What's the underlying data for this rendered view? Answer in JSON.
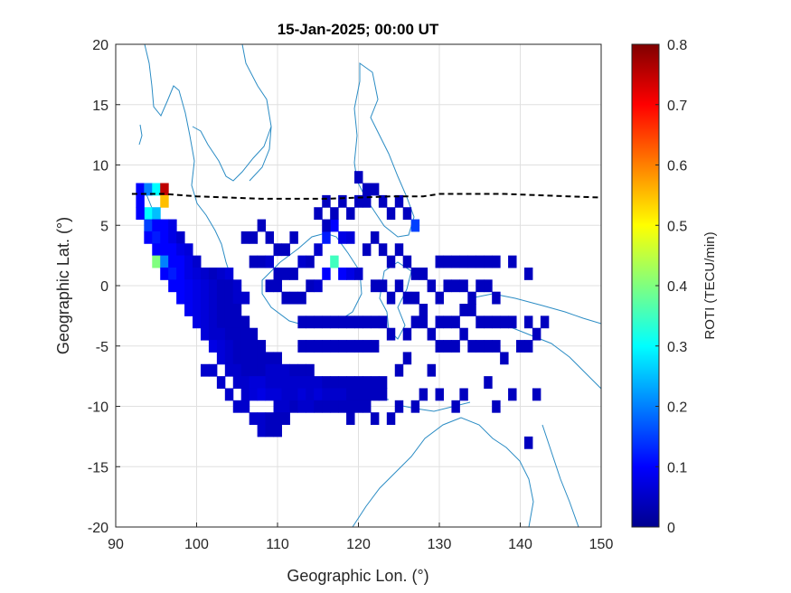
{
  "chart_data": {
    "type": "heatmap",
    "title": "15-Jan-2025; 00:00 UT",
    "xlabel": "Geographic Lon. (°)",
    "ylabel": "Geographic Lat. (°)",
    "xlim": [
      90,
      150
    ],
    "ylim": [
      -20,
      20
    ],
    "xticks": [
      "90",
      "100",
      "110",
      "120",
      "130",
      "140",
      "150"
    ],
    "yticks": [
      "20",
      "15",
      "10",
      "5",
      "0",
      "-5",
      "-10",
      "-15",
      "-20"
    ],
    "grid": true,
    "colorbar": {
      "label": "ROTI (TECU/min)",
      "range": [
        0,
        0.8
      ],
      "ticks": [
        "0",
        "0.1",
        "0.2",
        "0.3",
        "0.4",
        "0.5",
        "0.6",
        "0.7",
        "0.8"
      ],
      "colormap": "jet"
    },
    "magnetic_equator_line": {
      "style": "dashed",
      "color": "#000000",
      "x": [
        92,
        96,
        100,
        104,
        108,
        112,
        116,
        120,
        124,
        128,
        130,
        134,
        138,
        142,
        146,
        150
      ],
      "y": [
        7.6,
        7.6,
        7.4,
        7.3,
        7.2,
        7.2,
        7.2,
        7.3,
        7.4,
        7.4,
        7.6,
        7.6,
        7.6,
        7.5,
        7.4,
        7.3
      ]
    },
    "coastline_color": "#2b8cc4",
    "cells": [
      [
        93,
        8,
        0.1
      ],
      [
        94,
        8,
        0.2
      ],
      [
        95,
        8,
        0.3
      ],
      [
        96,
        8,
        0.75
      ],
      [
        96,
        7,
        0.55
      ],
      [
        93,
        7,
        0.1
      ],
      [
        94,
        6,
        0.3
      ],
      [
        95,
        6,
        0.25
      ],
      [
        93,
        6,
        0.1
      ],
      [
        94,
        5,
        0.15
      ],
      [
        95,
        5,
        0.1
      ],
      [
        96,
        5,
        0.1
      ],
      [
        97,
        5,
        0.08
      ],
      [
        94,
        4,
        0.1
      ],
      [
        95,
        4,
        0.12
      ],
      [
        96,
        4,
        0.1
      ],
      [
        97,
        4,
        0.08
      ],
      [
        98,
        4,
        0.06
      ],
      [
        95,
        3,
        0.1
      ],
      [
        96,
        3,
        0.1
      ],
      [
        97,
        3,
        0.1
      ],
      [
        98,
        3,
        0.08
      ],
      [
        99,
        3,
        0.07
      ],
      [
        95,
        2,
        0.4
      ],
      [
        96,
        2,
        0.2
      ],
      [
        97,
        2,
        0.1
      ],
      [
        98,
        2,
        0.1
      ],
      [
        99,
        2,
        0.08
      ],
      [
        100,
        2,
        0.06
      ],
      [
        96,
        1,
        0.1
      ],
      [
        97,
        1,
        0.12
      ],
      [
        98,
        1,
        0.1
      ],
      [
        99,
        1,
        0.08
      ],
      [
        100,
        1,
        0.07
      ],
      [
        101,
        1,
        0.06
      ],
      [
        102,
        1,
        0.05
      ],
      [
        103,
        1,
        0.06
      ],
      [
        104,
        1,
        0.07
      ],
      [
        97,
        0,
        0.1
      ],
      [
        98,
        0,
        0.1
      ],
      [
        99,
        0,
        0.09
      ],
      [
        100,
        0,
        0.08
      ],
      [
        101,
        0,
        0.07
      ],
      [
        102,
        0,
        0.06
      ],
      [
        103,
        0,
        0.05
      ],
      [
        104,
        0,
        0.05
      ],
      [
        105,
        0,
        0.06
      ],
      [
        98,
        -1,
        0.1
      ],
      [
        99,
        -1,
        0.09
      ],
      [
        100,
        -1,
        0.08
      ],
      [
        101,
        -1,
        0.07
      ],
      [
        102,
        -1,
        0.06
      ],
      [
        103,
        -1,
        0.05
      ],
      [
        104,
        -1,
        0.05
      ],
      [
        105,
        -1,
        0.06
      ],
      [
        106,
        -1,
        0.06
      ],
      [
        99,
        -2,
        0.09
      ],
      [
        100,
        -2,
        0.08
      ],
      [
        101,
        -2,
        0.07
      ],
      [
        102,
        -2,
        0.06
      ],
      [
        103,
        -2,
        0.05
      ],
      [
        104,
        -2,
        0.05
      ],
      [
        105,
        -2,
        0.05
      ],
      [
        100,
        -3,
        0.08
      ],
      [
        101,
        -3,
        0.07
      ],
      [
        102,
        -3,
        0.06
      ],
      [
        103,
        -3,
        0.05
      ],
      [
        104,
        -3,
        0.05
      ],
      [
        105,
        -3,
        0.05
      ],
      [
        106,
        -3,
        0.05
      ],
      [
        101,
        -4,
        0.07
      ],
      [
        102,
        -4,
        0.06
      ],
      [
        103,
        -4,
        0.06
      ],
      [
        104,
        -4,
        0.05
      ],
      [
        105,
        -4,
        0.05
      ],
      [
        106,
        -4,
        0.05
      ],
      [
        107,
        -4,
        0.05
      ],
      [
        102,
        -5,
        0.08
      ],
      [
        103,
        -5,
        0.07
      ],
      [
        104,
        -5,
        0.06
      ],
      [
        105,
        -5,
        0.05
      ],
      [
        106,
        -5,
        0.05
      ],
      [
        107,
        -5,
        0.05
      ],
      [
        108,
        -5,
        0.05
      ],
      [
        103,
        -6,
        0.07
      ],
      [
        104,
        -6,
        0.06
      ],
      [
        105,
        -6,
        0.05
      ],
      [
        106,
        -6,
        0.05
      ],
      [
        107,
        -6,
        0.05
      ],
      [
        108,
        -6,
        0.05
      ],
      [
        109,
        -6,
        0.05
      ],
      [
        110,
        -6,
        0.05
      ],
      [
        104,
        -7,
        0.06
      ],
      [
        105,
        -7,
        0.06
      ],
      [
        106,
        -7,
        0.05
      ],
      [
        107,
        -7,
        0.05
      ],
      [
        108,
        -7,
        0.05
      ],
      [
        109,
        -7,
        0.06
      ],
      [
        110,
        -7,
        0.06
      ],
      [
        111,
        -7,
        0.06
      ],
      [
        112,
        -7,
        0.05
      ],
      [
        113,
        -7,
        0.05
      ],
      [
        114,
        -7,
        0.05
      ],
      [
        105,
        -8,
        0.06
      ],
      [
        106,
        -8,
        0.06
      ],
      [
        107,
        -8,
        0.07
      ],
      [
        108,
        -8,
        0.07
      ],
      [
        109,
        -8,
        0.06
      ],
      [
        110,
        -8,
        0.06
      ],
      [
        111,
        -8,
        0.06
      ],
      [
        112,
        -8,
        0.06
      ],
      [
        113,
        -8,
        0.06
      ],
      [
        114,
        -8,
        0.06
      ],
      [
        115,
        -8,
        0.06
      ],
      [
        116,
        -8,
        0.05
      ],
      [
        117,
        -8,
        0.05
      ],
      [
        118,
        -8,
        0.05
      ],
      [
        119,
        -8,
        0.05
      ],
      [
        120,
        -8,
        0.05
      ],
      [
        121,
        -8,
        0.05
      ],
      [
        122,
        -8,
        0.05
      ],
      [
        123,
        -8,
        0.05
      ],
      [
        106,
        -9,
        0.06
      ],
      [
        107,
        -9,
        0.07
      ],
      [
        108,
        -9,
        0.08
      ],
      [
        109,
        -9,
        0.07
      ],
      [
        110,
        -9,
        0.07
      ],
      [
        111,
        -9,
        0.06
      ],
      [
        112,
        -9,
        0.06
      ],
      [
        113,
        -9,
        0.07
      ],
      [
        114,
        -9,
        0.06
      ],
      [
        115,
        -9,
        0.07
      ],
      [
        116,
        -9,
        0.06
      ],
      [
        117,
        -9,
        0.06
      ],
      [
        118,
        -9,
        0.06
      ],
      [
        119,
        -9,
        0.05
      ],
      [
        120,
        -9,
        0.05
      ],
      [
        121,
        -9,
        0.05
      ],
      [
        122,
        -9,
        0.05
      ],
      [
        123,
        -9,
        0.05
      ],
      [
        110,
        -10,
        0.06
      ],
      [
        111,
        -10,
        0.06
      ],
      [
        112,
        -10,
        0.05
      ],
      [
        113,
        -10,
        0.06
      ],
      [
        114,
        -10,
        0.06
      ],
      [
        115,
        -10,
        0.05
      ],
      [
        116,
        -10,
        0.05
      ],
      [
        117,
        -10,
        0.05
      ],
      [
        118,
        -10,
        0.05
      ],
      [
        119,
        -10,
        0.05
      ],
      [
        120,
        -10,
        0.05
      ],
      [
        121,
        -10,
        0.05
      ],
      [
        107,
        -11,
        0.06
      ],
      [
        108,
        -11,
        0.06
      ],
      [
        109,
        -11,
        0.05
      ],
      [
        110,
        -11,
        0.05
      ],
      [
        111,
        -11,
        0.05
      ],
      [
        108,
        -12,
        0.06
      ],
      [
        109,
        -12,
        0.05
      ],
      [
        110,
        -12,
        0.05
      ],
      [
        101,
        -7,
        0.06
      ],
      [
        102,
        -7,
        0.06
      ],
      [
        103,
        -8,
        0.06
      ],
      [
        104,
        -9,
        0.06
      ],
      [
        105,
        -10,
        0.06
      ],
      [
        106,
        -10,
        0.06
      ],
      [
        106,
        4,
        0.05
      ],
      [
        107,
        4,
        0.05
      ],
      [
        108,
        5,
        0.05
      ],
      [
        109,
        4,
        0.05
      ],
      [
        110,
        3,
        0.05
      ],
      [
        111,
        3,
        0.05
      ],
      [
        112,
        4,
        0.05
      ],
      [
        107,
        2,
        0.05
      ],
      [
        108,
        2,
        0.05
      ],
      [
        109,
        2,
        0.06
      ],
      [
        110,
        1,
        0.05
      ],
      [
        111,
        1,
        0.05
      ],
      [
        112,
        1,
        0.05
      ],
      [
        113,
        2,
        0.06
      ],
      [
        114,
        2,
        0.05
      ],
      [
        115,
        3,
        0.06
      ],
      [
        116,
        4,
        0.12
      ],
      [
        117,
        5,
        0.1
      ],
      [
        118,
        4,
        0.08
      ],
      [
        119,
        4,
        0.07
      ],
      [
        109,
        0,
        0.05
      ],
      [
        110,
        0,
        0.05
      ],
      [
        111,
        -1,
        0.05
      ],
      [
        112,
        -1,
        0.05
      ],
      [
        113,
        -1,
        0.05
      ],
      [
        114,
        0,
        0.05
      ],
      [
        115,
        0,
        0.06
      ],
      [
        116,
        1,
        0.1
      ],
      [
        117,
        2,
        0.35
      ],
      [
        118,
        1,
        0.1
      ],
      [
        119,
        1,
        0.08
      ],
      [
        120,
        1,
        0.06
      ],
      [
        113,
        -3,
        0.05
      ],
      [
        114,
        -3,
        0.05
      ],
      [
        115,
        -3,
        0.05
      ],
      [
        116,
        -3,
        0.05
      ],
      [
        117,
        -3,
        0.05
      ],
      [
        118,
        -3,
        0.05
      ],
      [
        119,
        -3,
        0.05
      ],
      [
        120,
        -3,
        0.05
      ],
      [
        121,
        -3,
        0.05
      ],
      [
        122,
        -3,
        0.05
      ],
      [
        113,
        -5,
        0.05
      ],
      [
        114,
        -5,
        0.05
      ],
      [
        115,
        -5,
        0.05
      ],
      [
        116,
        -5,
        0.05
      ],
      [
        117,
        -5,
        0.05
      ],
      [
        118,
        -5,
        0.05
      ],
      [
        119,
        -5,
        0.05
      ],
      [
        120,
        -5,
        0.05
      ],
      [
        121,
        -5,
        0.05
      ],
      [
        122,
        -5,
        0.05
      ],
      [
        115,
        6,
        0.05
      ],
      [
        116,
        7,
        0.05
      ],
      [
        117,
        6,
        0.05
      ],
      [
        118,
        7,
        0.05
      ],
      [
        119,
        6,
        0.05
      ],
      [
        120,
        7,
        0.05
      ],
      [
        121,
        7,
        0.05
      ],
      [
        122,
        8,
        0.05
      ],
      [
        123,
        7,
        0.05
      ],
      [
        124,
        6,
        0.05
      ],
      [
        125,
        7,
        0.05
      ],
      [
        126,
        6,
        0.05
      ],
      [
        127,
        5,
        0.15
      ],
      [
        120,
        9,
        0.05
      ],
      [
        121,
        8,
        0.05
      ],
      [
        116,
        5,
        0.05
      ],
      [
        121,
        3,
        0.05
      ],
      [
        122,
        4,
        0.05
      ],
      [
        123,
        3,
        0.05
      ],
      [
        124,
        2,
        0.05
      ],
      [
        125,
        3,
        0.05
      ],
      [
        126,
        2,
        0.05
      ],
      [
        127,
        1,
        0.05
      ],
      [
        128,
        1,
        0.05
      ],
      [
        129,
        0,
        0.05
      ],
      [
        122,
        0,
        0.05
      ],
      [
        123,
        0,
        0.05
      ],
      [
        124,
        -1,
        0.05
      ],
      [
        125,
        0,
        0.05
      ],
      [
        126,
        -1,
        0.05
      ],
      [
        127,
        -1,
        0.05
      ],
      [
        128,
        -2,
        0.05
      ],
      [
        123,
        -3,
        0.05
      ],
      [
        124,
        -4,
        0.05
      ],
      [
        126,
        -4,
        0.05
      ],
      [
        127,
        -3,
        0.05
      ],
      [
        128,
        -3,
        0.05
      ],
      [
        129,
        -4,
        0.05
      ],
      [
        130,
        -3,
        0.05
      ],
      [
        131,
        -3,
        0.05
      ],
      [
        132,
        -3,
        0.05
      ],
      [
        133,
        -2,
        0.05
      ],
      [
        134,
        -2,
        0.05
      ],
      [
        135,
        -3,
        0.05
      ],
      [
        136,
        -3,
        0.05
      ],
      [
        137,
        -3,
        0.05
      ],
      [
        138,
        -3,
        0.05
      ],
      [
        139,
        -3,
        0.05
      ],
      [
        130,
        -1,
        0.05
      ],
      [
        131,
        0,
        0.05
      ],
      [
        132,
        0,
        0.05
      ],
      [
        133,
        0,
        0.05
      ],
      [
        134,
        -1,
        0.05
      ],
      [
        135,
        0,
        0.05
      ],
      [
        136,
        0,
        0.05
      ],
      [
        137,
        -1,
        0.05
      ],
      [
        130,
        2,
        0.05
      ],
      [
        131,
        2,
        0.05
      ],
      [
        132,
        2,
        0.05
      ],
      [
        133,
        2,
        0.05
      ],
      [
        134,
        2,
        0.05
      ],
      [
        135,
        2,
        0.05
      ],
      [
        136,
        2,
        0.05
      ],
      [
        137,
        2,
        0.05
      ],
      [
        139,
        2,
        0.05
      ],
      [
        141,
        1,
        0.05
      ],
      [
        130,
        -5,
        0.05
      ],
      [
        131,
        -5,
        0.05
      ],
      [
        132,
        -5,
        0.05
      ],
      [
        133,
        -4,
        0.05
      ],
      [
        134,
        -5,
        0.05
      ],
      [
        135,
        -5,
        0.05
      ],
      [
        136,
        -5,
        0.05
      ],
      [
        137,
        -5,
        0.05
      ],
      [
        138,
        -6,
        0.05
      ],
      [
        141,
        -3,
        0.05
      ],
      [
        142,
        -4,
        0.05
      ],
      [
        143,
        -3,
        0.05
      ],
      [
        140,
        -5,
        0.05
      ],
      [
        141,
        -5,
        0.05
      ],
      [
        126,
        -6,
        0.05
      ],
      [
        125,
        -7,
        0.05
      ],
      [
        129,
        -7,
        0.05
      ],
      [
        128,
        -9,
        0.05
      ],
      [
        127,
        -10,
        0.05
      ],
      [
        130,
        -9,
        0.05
      ],
      [
        133,
        -9,
        0.05
      ],
      [
        136,
        -8,
        0.05
      ],
      [
        137,
        -10,
        0.05
      ],
      [
        139,
        -9,
        0.05
      ],
      [
        142,
        -9,
        0.05
      ],
      [
        132,
        -10,
        0.05
      ],
      [
        125,
        -10,
        0.05
      ],
      [
        124,
        -11,
        0.05
      ],
      [
        122,
        -11,
        0.05
      ],
      [
        119,
        -11,
        0.05
      ],
      [
        141,
        -13,
        0.05
      ]
    ]
  }
}
